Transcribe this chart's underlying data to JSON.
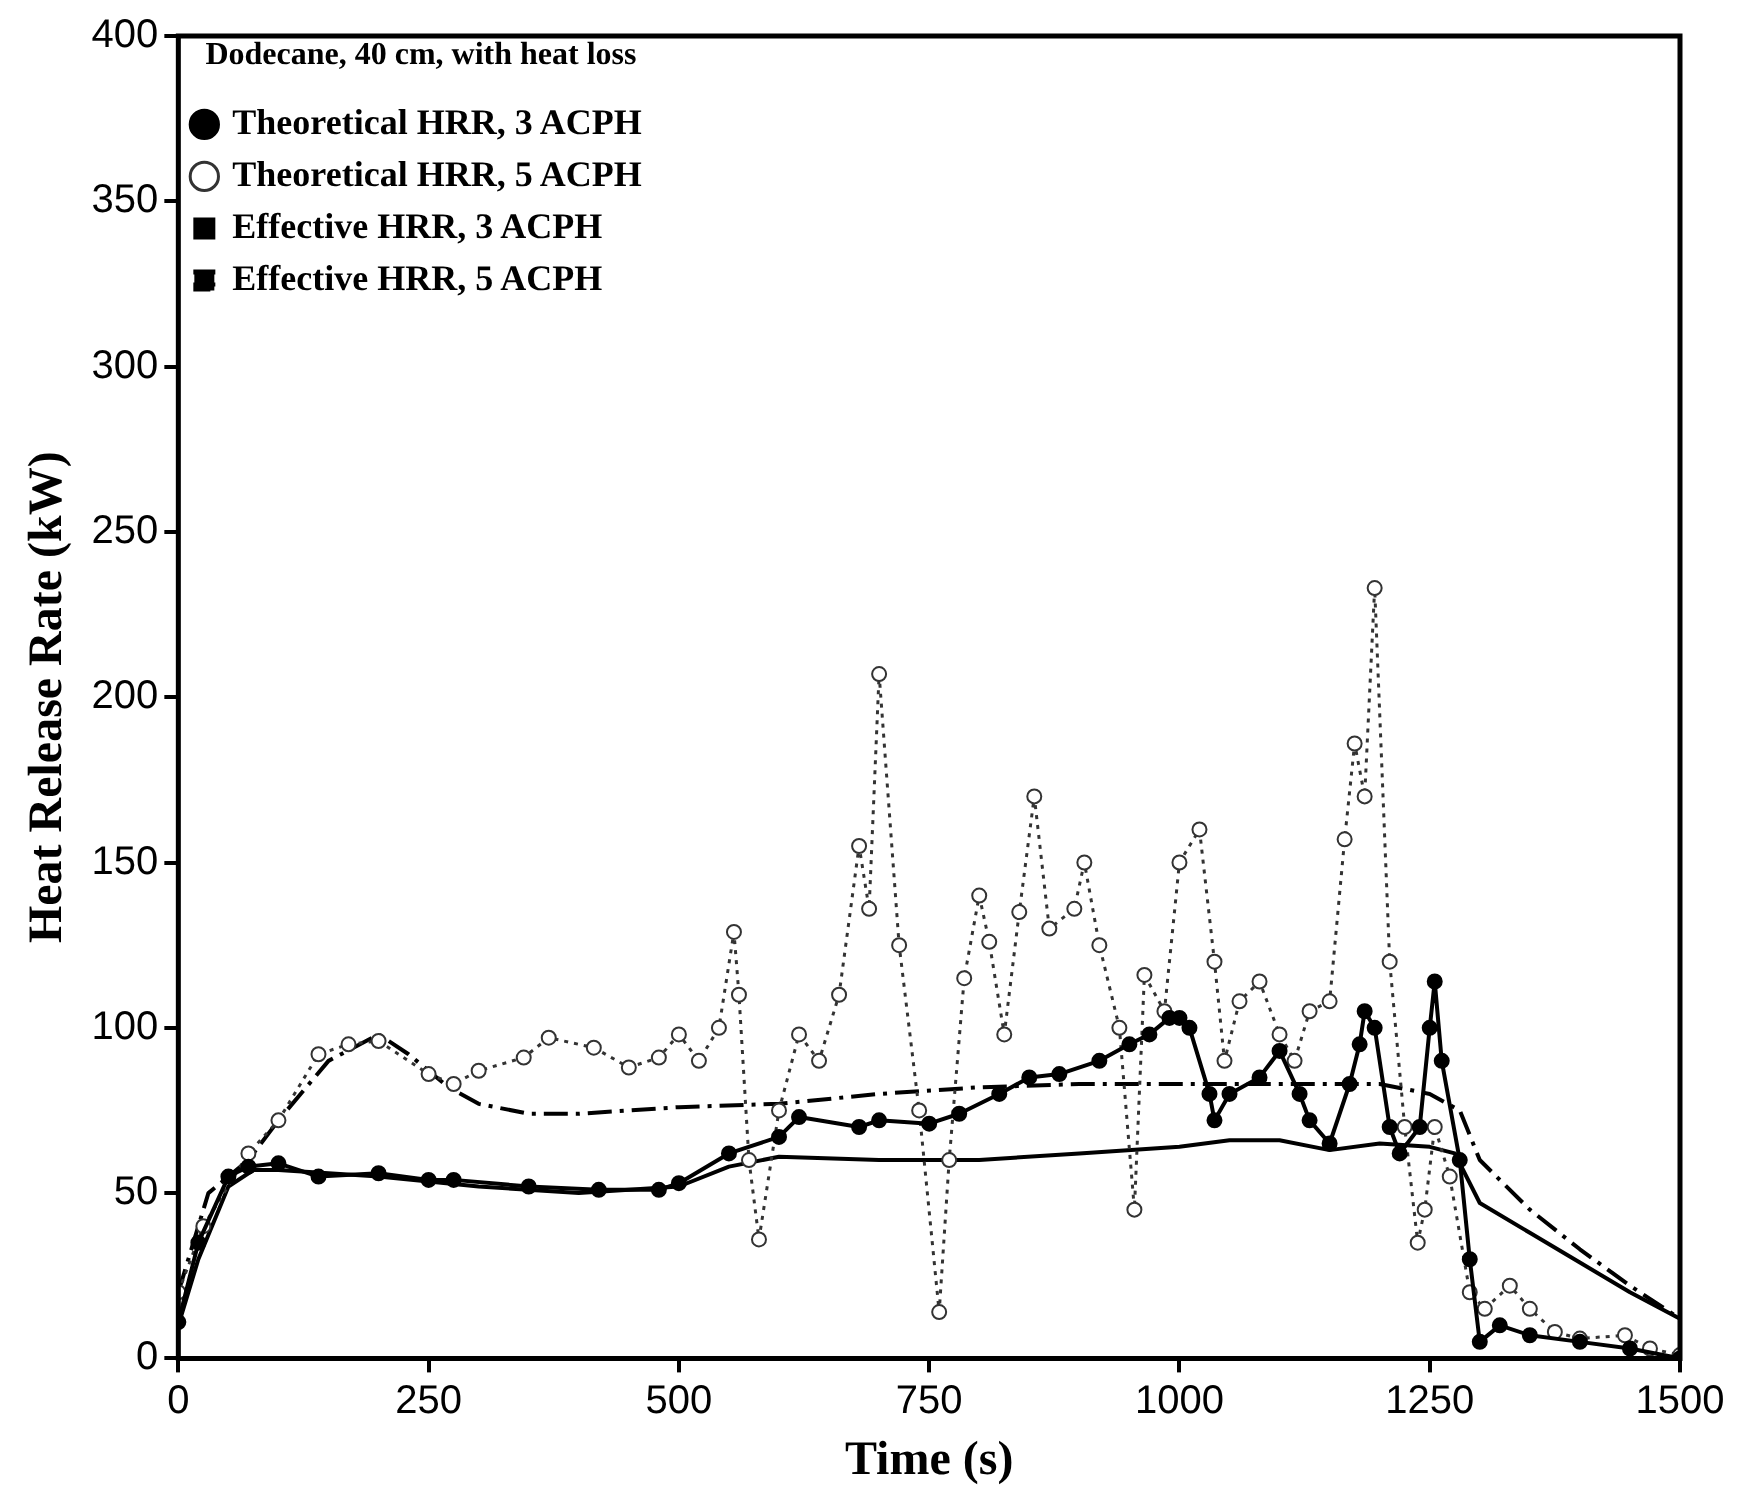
{
  "chart_data": {
    "type": "line",
    "legend_title": "Dodecane, 40 cm, with heat loss",
    "xlabel": "Time (s)",
    "ylabel": "Heat Release Rate (kW)",
    "xlim": [
      0,
      1500
    ],
    "xticks": [
      0,
      250,
      500,
      750,
      1000,
      1250,
      1500
    ],
    "ylim": [
      0,
      400
    ],
    "yticks": [
      0,
      50,
      100,
      150,
      200,
      250,
      300,
      350,
      400
    ],
    "grid": false,
    "legend": "top",
    "series": [
      {
        "name": "Theoretical HRR, 3 ACPH",
        "color": "#000000",
        "line_style": "solid",
        "marker": "circle",
        "x": [
          0,
          20,
          50,
          70,
          100,
          140,
          200,
          250,
          275,
          350,
          420,
          480,
          500,
          550,
          600,
          620,
          680,
          700,
          750,
          780,
          820,
          850,
          880,
          920,
          950,
          970,
          990,
          1000,
          1010,
          1030,
          1035,
          1050,
          1080,
          1100,
          1120,
          1130,
          1150,
          1170,
          1180,
          1185,
          1195,
          1210,
          1220,
          1240,
          1250,
          1255,
          1262,
          1280,
          1290,
          1300,
          1320,
          1350,
          1400,
          1450,
          1500
        ],
        "values": [
          11,
          35,
          55,
          58,
          59,
          55,
          56,
          54,
          54,
          52,
          51,
          51,
          53,
          62,
          67,
          73,
          70,
          72,
          71,
          74,
          80,
          85,
          86,
          90,
          95,
          98,
          103,
          103,
          100,
          80,
          72,
          80,
          85,
          93,
          80,
          72,
          65,
          83,
          95,
          105,
          100,
          70,
          62,
          70,
          100,
          114,
          90,
          60,
          30,
          5,
          10,
          7,
          5,
          3,
          0
        ]
      },
      {
        "name": "Theoretical HRR, 5 ACPH",
        "color": "#333333",
        "line_style": "dotted",
        "marker": "open circle",
        "x": [
          0,
          25,
          70,
          100,
          140,
          170,
          200,
          250,
          275,
          300,
          345,
          370,
          415,
          450,
          480,
          500,
          520,
          540,
          555,
          560,
          570,
          580,
          600,
          620,
          640,
          660,
          680,
          690,
          700,
          720,
          740,
          760,
          770,
          785,
          800,
          810,
          825,
          840,
          855,
          870,
          895,
          905,
          920,
          940,
          955,
          965,
          985,
          1000,
          1020,
          1035,
          1045,
          1060,
          1080,
          1100,
          1115,
          1130,
          1150,
          1165,
          1175,
          1185,
          1195,
          1210,
          1225,
          1238,
          1245,
          1255,
          1270,
          1290,
          1305,
          1330,
          1350,
          1375,
          1400,
          1445,
          1470,
          1500
        ],
        "values": [
          20,
          40,
          62,
          72,
          92,
          95,
          96,
          86,
          83,
          87,
          91,
          97,
          94,
          88,
          91,
          98,
          90,
          100,
          129,
          110,
          60,
          36,
          75,
          98,
          90,
          110,
          155,
          136,
          207,
          125,
          75,
          14,
          60,
          115,
          140,
          126,
          98,
          135,
          170,
          130,
          136,
          150,
          125,
          100,
          45,
          116,
          105,
          150,
          160,
          120,
          90,
          108,
          114,
          98,
          90,
          105,
          108,
          157,
          186,
          170,
          233,
          120,
          70,
          35,
          45,
          70,
          55,
          20,
          15,
          22,
          15,
          8,
          6,
          7,
          3,
          1
        ]
      },
      {
        "name": "Effective HRR, 3 ACPH",
        "color": "#000000",
        "line_style": "solid",
        "marker": "none",
        "x": [
          0,
          20,
          50,
          75,
          100,
          200,
          300,
          400,
          500,
          550,
          600,
          700,
          800,
          900,
          1000,
          1050,
          1100,
          1150,
          1200,
          1250,
          1275,
          1300,
          1350,
          1400,
          1450,
          1500
        ],
        "values": [
          10,
          30,
          52,
          57,
          57,
          55,
          52,
          50,
          52,
          58,
          61,
          60,
          60,
          62,
          64,
          66,
          66,
          63,
          65,
          64,
          62,
          47,
          38,
          29,
          20,
          12
        ]
      },
      {
        "name": "Effective HRR, 5 ACPH",
        "color": "#000000",
        "line_style": "dashdot",
        "marker": "none",
        "x": [
          0,
          30,
          70,
          100,
          150,
          200,
          230,
          270,
          300,
          350,
          400,
          500,
          600,
          700,
          800,
          900,
          1000,
          1100,
          1200,
          1250,
          1280,
          1300,
          1350,
          1400,
          1450,
          1500
        ],
        "values": [
          20,
          50,
          60,
          72,
          90,
          98,
          92,
          82,
          77,
          74,
          74,
          76,
          77,
          80,
          82,
          83,
          83,
          83,
          83,
          80,
          75,
          60,
          45,
          33,
          22,
          12
        ]
      }
    ]
  }
}
